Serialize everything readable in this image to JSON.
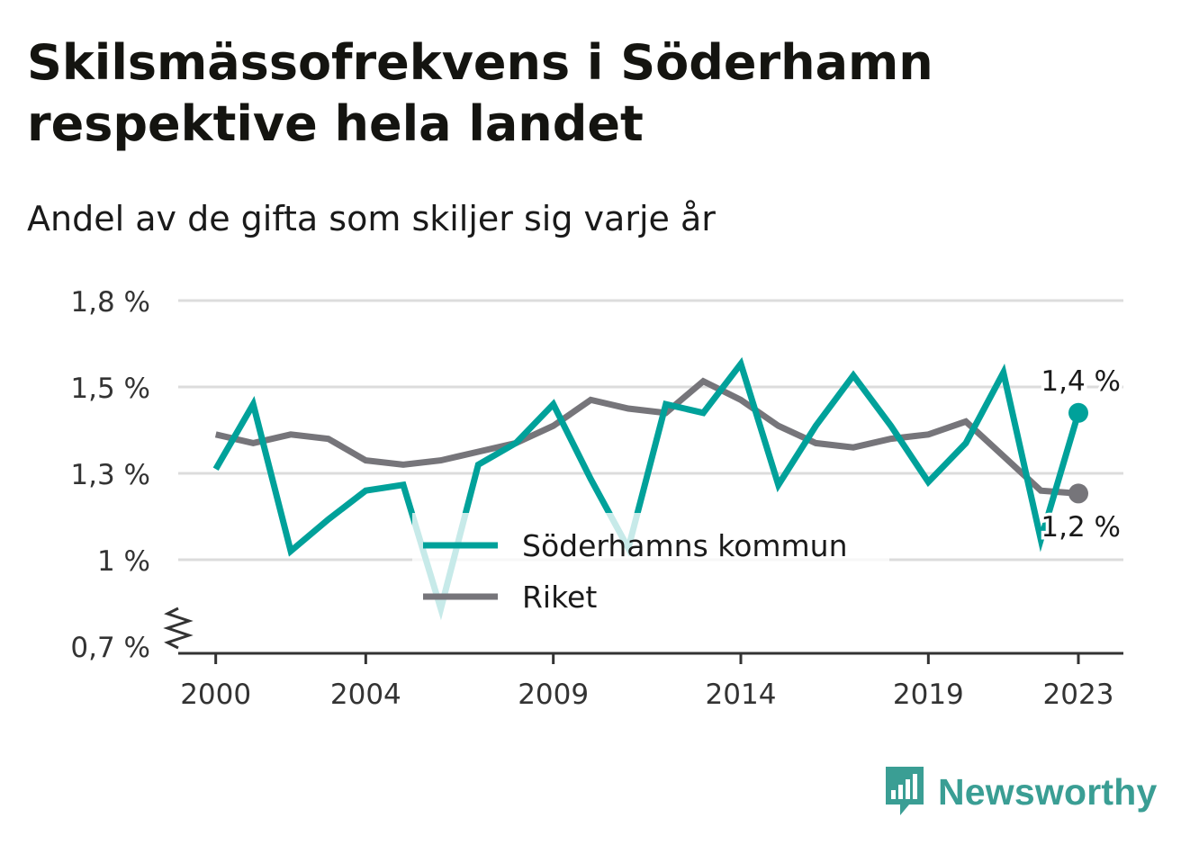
{
  "title": "Skilsmässofrekvens i Söderhamn respektive hela landet",
  "subtitle": "Andel av de gifta som skiljer sig varje år",
  "brand": "Newsworthy",
  "colors": {
    "soderhamn": "#00a19a",
    "riket": "#76757a",
    "grid": "#dcdcdc",
    "axis": "#333333",
    "brand": "#3a9e94"
  },
  "chart_data": {
    "type": "line",
    "x": [
      2000,
      2001,
      2002,
      2003,
      2004,
      2005,
      2006,
      2007,
      2008,
      2009,
      2010,
      2011,
      2012,
      2013,
      2014,
      2015,
      2016,
      2017,
      2018,
      2019,
      2020,
      2021,
      2022,
      2023
    ],
    "x_ticks": [
      2000,
      2004,
      2009,
      2014,
      2019,
      2023
    ],
    "xlim": [
      1999,
      2024.2
    ],
    "ylim": [
      0.7,
      1.8
    ],
    "y_ticks": [
      0.7,
      1.0,
      1.3,
      1.5,
      1.8
    ],
    "y_tick_labels": [
      "0,7 %",
      "1 %",
      "1,3 %",
      "1,5 %",
      "1,8 %"
    ],
    "y_axis_break": true,
    "grid": true,
    "legend_position": "center-bottom",
    "series": [
      {
        "name": "Söderhamns kommun",
        "color": "#00a19a",
        "values": [
          1.31,
          1.46,
          1.03,
          1.14,
          1.24,
          1.26,
          0.83,
          1.32,
          1.37,
          1.46,
          1.28,
          1.04,
          1.46,
          1.44,
          1.58,
          1.26,
          1.41,
          1.54,
          1.41,
          1.27,
          1.37,
          1.55,
          1.07,
          1.44
        ],
        "end_label": "1,4 %"
      },
      {
        "name": "Riket",
        "color": "#76757a",
        "values": [
          1.39,
          1.37,
          1.39,
          1.38,
          1.33,
          1.32,
          1.33,
          1.35,
          1.37,
          1.41,
          1.47,
          1.45,
          1.44,
          1.52,
          1.47,
          1.41,
          1.37,
          1.36,
          1.38,
          1.39,
          1.42,
          1.34,
          1.24,
          1.23
        ],
        "end_label": "1,2 %"
      }
    ]
  }
}
